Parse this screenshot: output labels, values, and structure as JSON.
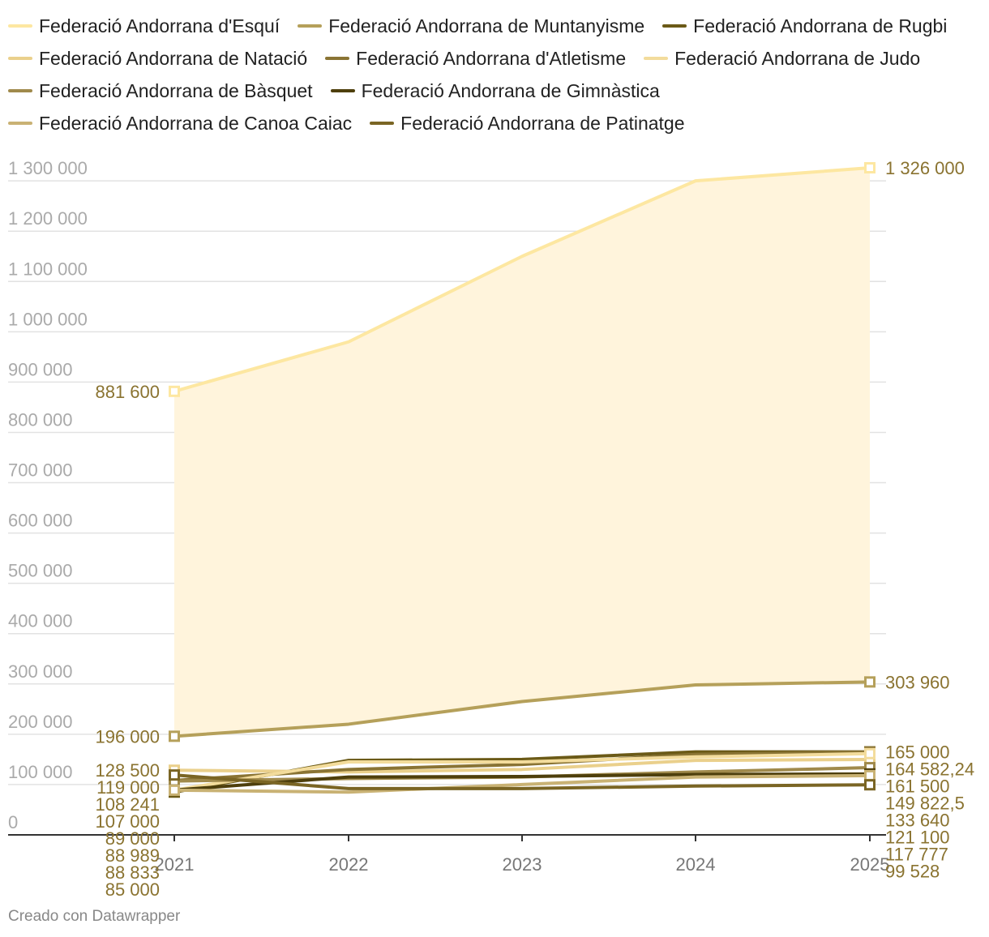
{
  "chart_data": {
    "type": "line",
    "x": [
      "2021",
      "2022",
      "2023",
      "2024",
      "2025"
    ],
    "yticks": [
      0,
      100000,
      200000,
      300000,
      400000,
      500000,
      600000,
      700000,
      800000,
      900000,
      1000000,
      1100000,
      1200000,
      1300000
    ],
    "ytick_labels": [
      "0",
      "100 000",
      "200 000",
      "300 000",
      "400 000",
      "500 000",
      "600 000",
      "700 000",
      "800 000",
      "900 000",
      "1 000 000",
      "1 100 000",
      "1 200 000",
      "1 300 000"
    ],
    "ylim": [
      0,
      1326000
    ],
    "grid": true,
    "legend": "top",
    "shaded_area": {
      "between": [
        "Federació Andorrana d'Esquí",
        "Federació Andorrana de Muntanyisme"
      ],
      "color": "#fff4dc"
    },
    "series": [
      {
        "name": "Federació Andorrana d'Esquí",
        "color": "#fde7a1",
        "values": [
          881600,
          980000,
          1150000,
          1300000,
          1326000
        ],
        "start_label": "881 600",
        "end_label": "1 326 000"
      },
      {
        "name": "Federació Andorrana de Muntanyisme",
        "color": "#b5a05a",
        "values": [
          196000,
          220000,
          265000,
          298000,
          303960
        ],
        "start_label": "196 000",
        "end_label": "303 960"
      },
      {
        "name": "Federació Andorrana de Rugbi",
        "color": "#6b5a17",
        "values": [
          85000,
          148000,
          150000,
          165000,
          165000
        ],
        "start_label": "85 000",
        "end_label": "165 000"
      },
      {
        "name": "Federació Andorrana de Natació",
        "color": "#ead08c",
        "values": [
          128500,
          125000,
          130000,
          148000,
          149822.5
        ],
        "start_label": "128 500",
        "end_label": "149 822,5"
      },
      {
        "name": "Federació Andorrana d'Atletisme",
        "color": "#8a7434",
        "values": [
          108241,
          130000,
          140000,
          160000,
          164582.24
        ],
        "start_label": "108 241",
        "end_label": "164 582,24"
      },
      {
        "name": "Federació Andorrana de Judo",
        "color": "#f3dc9c",
        "values": [
          88989,
          145000,
          145000,
          155000,
          161500
        ],
        "start_label": "88 989",
        "end_label": "161 500"
      },
      {
        "name": "Federació Andorrana de Bàsquet",
        "color": "#a08a4c",
        "values": [
          107000,
          112000,
          115000,
          125000,
          133640
        ],
        "start_label": "107 000",
        "end_label": "133 640"
      },
      {
        "name": "Federació Andorrana de Gimnàstica",
        "color": "#4e3f0c",
        "values": [
          89000,
          115000,
          116000,
          120000,
          121100
        ],
        "start_label": "89 000",
        "end_label": "121 100"
      },
      {
        "name": "Federació Andorrana de Canoa Caiac",
        "color": "#c9b274",
        "values": [
          88833,
          85000,
          100000,
          115000,
          117777
        ],
        "start_label": "88 833",
        "end_label": "117 777"
      },
      {
        "name": "Federació Andorrana de Patinatge",
        "color": "#7a6524",
        "values": [
          119000,
          92000,
          92000,
          97000,
          99528
        ],
        "start_label": "119 000",
        "end_label": "99 528"
      }
    ]
  },
  "footer": "Creado con Datawrapper"
}
